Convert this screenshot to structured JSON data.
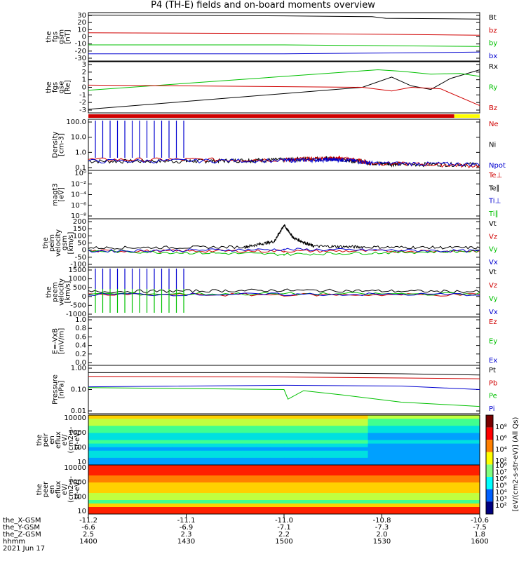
{
  "title": "P4 (TH-E) fields and on-board moments overview",
  "colors": {
    "black": "#000000",
    "red": "#d00000",
    "green": "#00c000",
    "blue": "#0000d0",
    "yellow": "#ffff00"
  },
  "chart_data": [
    {
      "type": "line",
      "ylabel": [
        "the",
        "fgs",
        "gsm",
        "[nT]"
      ],
      "yticks": [
        "30",
        "20",
        "10",
        "0",
        "-10",
        "-20",
        "-30"
      ],
      "ylim": [
        -30,
        30
      ],
      "legend": [
        {
          "name": "Bt",
          "color": "black"
        },
        {
          "name": "bz",
          "color": "red"
        },
        {
          "name": "by",
          "color": "green"
        },
        {
          "name": "bx",
          "color": "blue"
        }
      ],
      "series": [
        {
          "name": "Bt",
          "color": "black",
          "x": [
            1400,
            1500,
            1545,
            1552,
            1600
          ],
          "y": [
            27,
            26,
            25,
            23,
            22
          ]
        },
        {
          "name": "bz",
          "color": "red",
          "x": [
            1400,
            1500,
            1555,
            1600
          ],
          "y": [
            5,
            4,
            3,
            2
          ]
        },
        {
          "name": "by",
          "color": "green",
          "x": [
            1400,
            1500,
            1555,
            1600
          ],
          "y": [
            -10,
            -10,
            -11,
            -12
          ]
        },
        {
          "name": "bx",
          "color": "blue",
          "x": [
            1400,
            1500,
            1555,
            1600
          ],
          "y": [
            -21,
            -21,
            -20,
            -19
          ]
        }
      ]
    },
    {
      "type": "line",
      "ylabel": [
        "the",
        "fgs",
        "gse",
        "[Re]"
      ],
      "yticks": [
        "3",
        "2",
        "1",
        "0",
        "-1",
        "-2",
        "-3"
      ],
      "ylim": [
        -3.5,
        3.5
      ],
      "legend": [
        {
          "name": "Rx",
          "color": "black"
        },
        {
          "name": "Ry",
          "color": "green"
        },
        {
          "name": "Bz",
          "color": "red"
        }
      ],
      "series": [
        {
          "name": "Rx",
          "color": "black",
          "x": [
            1400,
            1540,
            1555,
            1565,
            1575,
            1585,
            1600
          ],
          "y": [
            -3.0,
            0.0,
            1.4,
            0.2,
            -0.3,
            1.2,
            2.4
          ]
        },
        {
          "name": "Ry",
          "color": "green",
          "x": [
            1400,
            1548,
            1560,
            1575,
            1590,
            1600
          ],
          "y": [
            -0.4,
            2.4,
            2.2,
            1.8,
            1.9,
            1.5
          ]
        },
        {
          "name": "Bz",
          "color": "red",
          "x": [
            1400,
            1540,
            1555,
            1565,
            1580,
            1600
          ],
          "y": [
            0.3,
            0.0,
            -0.5,
            0.0,
            -0.2,
            -2.5
          ]
        }
      ]
    },
    {
      "type": "line",
      "ylabel": [
        "Density",
        "[cm-3]"
      ],
      "scale": "log",
      "yticks": [
        "100.0",
        "10.0",
        "1.0",
        "0.1"
      ],
      "ylim": [
        0.1,
        200
      ],
      "legend": [
        {
          "name": "Ne",
          "color": "red"
        },
        {
          "name": "Ni",
          "color": "black"
        },
        {
          "name": "Npot",
          "color": "blue"
        }
      ],
      "series": [
        {
          "name": "Ni",
          "color": "black",
          "x": [
            1400,
            1450,
            1480,
            1500,
            1520,
            1530,
            1545,
            1560,
            1600
          ],
          "y": [
            0.4,
            0.4,
            0.45,
            0.5,
            0.6,
            0.5,
            0.3,
            0.25,
            0.25
          ]
        },
        {
          "name": "Ne",
          "color": "red",
          "x": [
            1400,
            1500,
            1520,
            1530,
            1545,
            1600
          ],
          "y": [
            0.5,
            0.5,
            0.6,
            0.6,
            0.3,
            0.2
          ]
        },
        {
          "name": "Npot",
          "color": "blue",
          "x": [
            1400,
            1500,
            1520,
            1530,
            1545,
            1600
          ],
          "y": [
            0.4,
            0.45,
            0.5,
            0.5,
            0.3,
            0.25
          ]
        }
      ]
    },
    {
      "type": "line",
      "ylabel": [
        "magt3",
        "[eV]"
      ],
      "scale": "log",
      "yticks": [
        "10⁰",
        "10⁻²",
        "10⁻⁴",
        "10⁻⁶",
        "10⁻⁸"
      ],
      "ylim": [
        1e-09,
        1
      ],
      "legend": [
        {
          "name": "Te⊥",
          "color": "red"
        },
        {
          "name": "Te∥",
          "color": "black"
        },
        {
          "name": "Ti⊥",
          "color": "blue"
        },
        {
          "name": "Ti∥",
          "color": "green"
        }
      ],
      "series": []
    },
    {
      "type": "line",
      "ylabel": [
        "the",
        "peim",
        "velocity",
        "gsm",
        "[km/s]"
      ],
      "yticks": [
        "200",
        "150",
        "100",
        "50",
        "0",
        "-50",
        "-100"
      ],
      "ylim": [
        -100,
        200
      ],
      "legend": [
        {
          "name": "Vt",
          "color": "black"
        },
        {
          "name": "Vz",
          "color": "red"
        },
        {
          "name": "Vy",
          "color": "green"
        },
        {
          "name": "Vx",
          "color": "blue"
        }
      ],
      "series": [
        {
          "name": "Vt",
          "color": "black",
          "x": [
            1400,
            1480,
            1495,
            1500,
            1505,
            1515,
            1540,
            1600
          ],
          "y": [
            20,
            25,
            60,
            160,
            80,
            30,
            25,
            20
          ]
        },
        {
          "name": "Vz",
          "color": "red",
          "x": [
            1400,
            1500,
            1600
          ],
          "y": [
            0,
            0,
            0
          ]
        },
        {
          "name": "Vy",
          "color": "green",
          "x": [
            1400,
            1500,
            1600
          ],
          "y": [
            0,
            -20,
            0
          ]
        },
        {
          "name": "Vx",
          "color": "blue",
          "x": [
            1400,
            1500,
            1600
          ],
          "y": [
            0,
            10,
            0
          ]
        }
      ]
    },
    {
      "type": "line",
      "ylabel": [
        "the",
        "peem",
        "velocity",
        "[km/s]"
      ],
      "yticks": [
        "1500",
        "1000",
        "500",
        "0",
        "-500",
        "-1000"
      ],
      "ylim": [
        -1300,
        1500
      ],
      "legend": [
        {
          "name": "Vt",
          "color": "black"
        },
        {
          "name": "Vz",
          "color": "red"
        },
        {
          "name": "Vy",
          "color": "green"
        },
        {
          "name": "Vx",
          "color": "blue"
        }
      ],
      "series": [
        {
          "name": "Vt",
          "color": "black",
          "x": [
            1400,
            1500,
            1600
          ],
          "y": [
            120,
            200,
            120
          ]
        },
        {
          "name": "Vz",
          "color": "red",
          "x": [
            1400,
            1600
          ],
          "y": [
            -50,
            -50
          ]
        },
        {
          "name": "Vy",
          "color": "green",
          "x": [
            1400,
            1600
          ],
          "y": [
            0,
            0
          ]
        },
        {
          "name": "Vx",
          "color": "blue",
          "x": [
            1400,
            1600
          ],
          "y": [
            -30,
            -30
          ]
        }
      ]
    },
    {
      "type": "line",
      "ylabel": [
        "E=-VxB",
        "[mV/m]"
      ],
      "yticks": [
        "1.0",
        "0.8",
        "0.6",
        "0.4",
        "0.2",
        "0.0"
      ],
      "ylim": [
        0,
        1
      ],
      "legend": [
        {
          "name": "Ez",
          "color": "red"
        },
        {
          "name": "Ey",
          "color": "green"
        },
        {
          "name": "Ex",
          "color": "blue"
        }
      ],
      "series": []
    },
    {
      "type": "line",
      "ylabel": [
        "Pressure",
        "[nPa]"
      ],
      "scale": "log",
      "yticks": [
        "1.00",
        "0.10",
        "0.01"
      ],
      "ylim": [
        0.01,
        1
      ],
      "legend": [
        {
          "name": "Pt",
          "color": "black"
        },
        {
          "name": "Pb",
          "color": "red"
        },
        {
          "name": "Pe",
          "color": "green"
        },
        {
          "name": "Pi",
          "color": "blue"
        }
      ],
      "series": [
        {
          "name": "Pt",
          "color": "black",
          "x": [
            1400,
            1500,
            1560,
            1600
          ],
          "y": [
            0.5,
            0.5,
            0.45,
            0.4
          ]
        },
        {
          "name": "Pb",
          "color": "red",
          "x": [
            1400,
            1500,
            1560,
            1600
          ],
          "y": [
            0.35,
            0.33,
            0.3,
            0.28
          ]
        },
        {
          "name": "Pe",
          "color": "green",
          "x": [
            1400,
            1500,
            1502,
            1510,
            1530,
            1560,
            1600
          ],
          "y": [
            0.12,
            0.1,
            0.04,
            0.09,
            0.06,
            0.03,
            0.02
          ]
        },
        {
          "name": "Pi",
          "color": "blue",
          "x": [
            1400,
            1500,
            1560,
            1600
          ],
          "y": [
            0.13,
            0.15,
            0.14,
            0.1
          ]
        }
      ]
    },
    {
      "type": "heatmap",
      "ylabel": [
        "the",
        "peir",
        "en",
        "eflux",
        "eV/",
        "(cm2-s-",
        "sr-eV)"
      ],
      "yticks": [
        "10000",
        "1000",
        "100",
        "10"
      ],
      "ylim": [
        5,
        30000
      ]
    },
    {
      "type": "heatmap",
      "ylabel": [
        "the",
        "peer",
        "en",
        "eflux",
        "eV/",
        "(cm2-s-",
        "sr-eV)"
      ],
      "yticks": [
        "10000",
        "1000",
        "100",
        "10"
      ],
      "ylim": [
        5,
        30000
      ]
    }
  ],
  "colorbar": {
    "label": "[eV/(cm2-s-str-eV)] (All Qs)",
    "upper_ticks": [
      "10⁸",
      "10⁶",
      "10⁴",
      "10²"
    ],
    "lower_ticks": [
      "10⁸",
      "10⁷",
      "10⁶",
      "10⁵",
      "10⁴",
      "10³",
      "10²"
    ]
  },
  "x_axis": {
    "xlim": [
      1400,
      1600
    ],
    "rows": [
      {
        "label": "the_X-GSM",
        "values": [
          "-11.2",
          "-11.1",
          "-11.0",
          "-10.8",
          "-10.6"
        ]
      },
      {
        "label": "the_Y-GSM",
        "values": [
          "-6.6",
          "-6.9",
          "-7.1",
          "-7.3",
          "-7.5"
        ]
      },
      {
        "label": "the_Z-GSM",
        "values": [
          "2.5",
          "2.3",
          "2.2",
          "2.0",
          "1.8"
        ]
      },
      {
        "label": "hhmm",
        "values": [
          "1400",
          "1430",
          "1500",
          "1530",
          "1600"
        ]
      }
    ],
    "date": "2021 Jun 17"
  }
}
